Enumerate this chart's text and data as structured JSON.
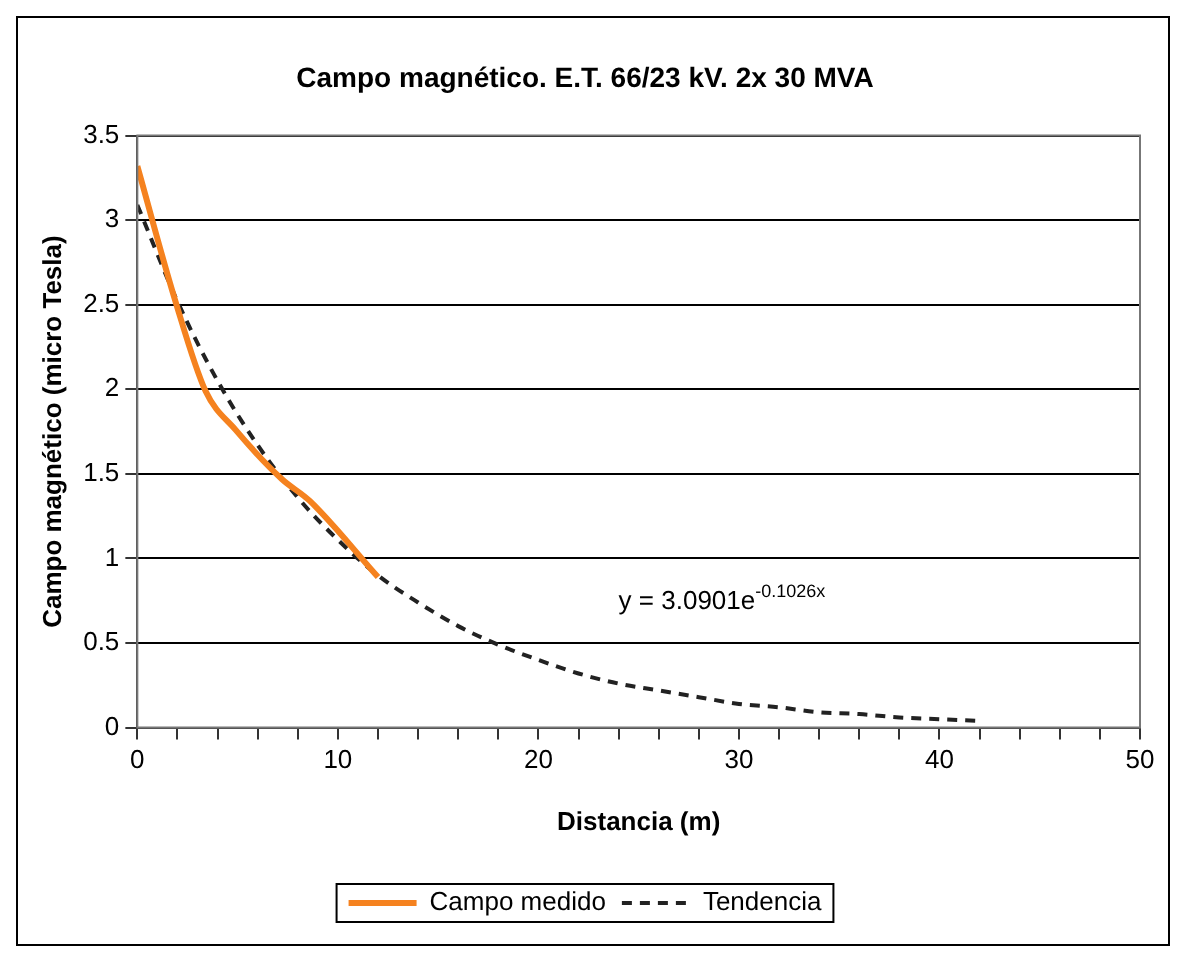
{
  "chart_data": {
    "type": "line",
    "title": "Campo magnético. E.T. 66/23 kV. 2x 30 MVA",
    "xlabel": "Distancia (m)",
    "ylabel": "Campo magnético (micro Tesla)",
    "series": [
      {
        "name": "Campo medido",
        "color": "#f5821f",
        "line_style": "solid",
        "x": [
          0,
          1.9,
          3.4,
          4.9,
          7.2,
          8.6,
          12
        ],
        "values": [
          3.32,
          2.52,
          1.99,
          1.76,
          1.47,
          1.34,
          0.89
        ]
      },
      {
        "name": "Tendencia",
        "color": "#222222",
        "line_style": "dashed",
        "x": [
          0,
          2,
          4,
          6,
          8,
          10,
          12,
          14,
          16,
          18,
          20,
          22,
          24,
          26,
          28,
          30,
          32,
          34,
          36,
          38,
          40,
          42
        ],
        "values": [
          3.09,
          2.52,
          2.05,
          1.67,
          1.36,
          1.11,
          0.9,
          0.74,
          0.6,
          0.49,
          0.4,
          0.32,
          0.26,
          0.22,
          0.18,
          0.14,
          0.12,
          0.09,
          0.08,
          0.06,
          0.05,
          0.04
        ]
      }
    ],
    "xlim": [
      0,
      50
    ],
    "xticks": [
      0,
      {
        "value": 2,
        "label": null
      },
      {
        "value": 4,
        "label": null
      },
      {
        "value": 6,
        "label": null
      },
      {
        "value": 8,
        "label": null
      },
      10,
      {
        "value": 12,
        "label": null
      },
      {
        "value": 14,
        "label": null
      },
      {
        "value": 16,
        "label": null
      },
      {
        "value": 18,
        "label": null
      },
      20,
      {
        "value": 22,
        "label": null
      },
      {
        "value": 24,
        "label": null
      },
      {
        "value": 26,
        "label": null
      },
      {
        "value": 28,
        "label": null
      },
      30,
      {
        "value": 32,
        "label": null
      },
      {
        "value": 34,
        "label": null
      },
      {
        "value": 36,
        "label": null
      },
      {
        "value": 38,
        "label": null
      },
      40,
      {
        "value": 42,
        "label": null
      },
      {
        "value": 44,
        "label": null
      },
      {
        "value": 46,
        "label": null
      },
      {
        "value": 48,
        "label": null
      },
      50
    ],
    "ylim": [
      0,
      3.5
    ],
    "yticks": [
      0,
      0.5,
      1,
      1.5,
      2,
      2.5,
      3,
      3.5
    ],
    "grid": "y",
    "legend": "bottom",
    "marker": "none",
    "annotations": [
      "y = 3.0901e$^{-0.1026x}$"
    ]
  }
}
